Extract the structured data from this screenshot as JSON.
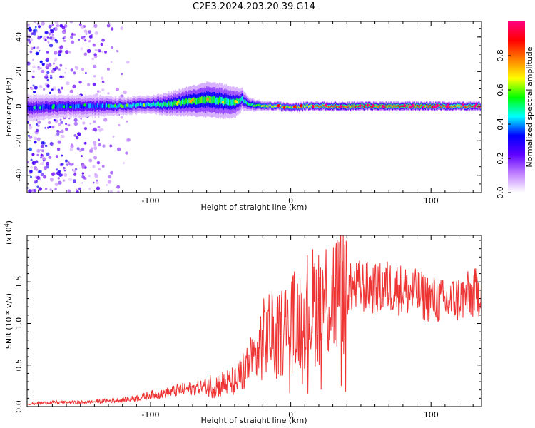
{
  "title": "C2E3.2024.203.20.39.G14",
  "chart_data": [
    {
      "type": "heatmap",
      "xlabel": "Height of straight line (km)",
      "ylabel": "Frequency (Hz)",
      "xlim": [
        -188,
        136
      ],
      "ylim": [
        -50,
        49
      ],
      "x_ticks": [
        -100,
        0,
        100
      ],
      "x_tick_labels": [
        "-100",
        "0",
        "100"
      ],
      "y_ticks": [
        -40,
        -20,
        0,
        20,
        40
      ],
      "y_tick_labels": [
        "-40",
        "-20",
        "0",
        "20",
        "40"
      ],
      "colorbar": {
        "label": "Normalized spectral amplitude",
        "range": [
          0,
          1
        ],
        "ticks": [
          0.0,
          0.2,
          0.4,
          0.6,
          0.8
        ],
        "tick_labels": [
          "0.0",
          "0.2",
          "0.4",
          "0.6",
          "0.8"
        ],
        "colormap": [
          "#ffffff",
          "#c080ff",
          "#6000ff",
          "#0000ff",
          "#00ffff",
          "#00ff00",
          "#ffff00",
          "#ff8000",
          "#ff0000",
          "#ff0080"
        ]
      },
      "ridge": {
        "x": [
          -185,
          -160,
          -140,
          -120,
          -100,
          -90,
          -80,
          -70,
          -60,
          -50,
          -40,
          -35,
          -30,
          -20,
          -10,
          0,
          10,
          20,
          40,
          60,
          80,
          100,
          120,
          135
        ],
        "center_freq": [
          -1,
          0,
          0,
          0,
          1,
          1,
          2,
          3,
          4,
          3,
          2,
          4,
          1,
          0,
          0,
          -1,
          0,
          0,
          0,
          0,
          0,
          0,
          0,
          0
        ],
        "peak_amplitude": [
          0.35,
          0.4,
          0.4,
          0.45,
          0.5,
          0.55,
          0.55,
          0.6,
          0.6,
          0.55,
          0.55,
          0.5,
          0.55,
          0.7,
          0.75,
          0.7,
          0.75,
          0.85,
          0.9,
          0.9,
          0.9,
          0.9,
          0.85,
          0.85
        ],
        "spread_hz": [
          6,
          5,
          5,
          4,
          4,
          5,
          6,
          7,
          8,
          8,
          7,
          5,
          3,
          2,
          2,
          2,
          2,
          2,
          2,
          2,
          2,
          2,
          2,
          2
        ]
      },
      "scatter_noise_region": [
        -188,
        -115
      ]
    },
    {
      "type": "line",
      "xlabel": "Height of straight line (km)",
      "ylabel": "SNR (10 * v/v)",
      "y_scale_label": "(x10^4)",
      "xlim": [
        -188,
        136
      ],
      "ylim": [
        0,
        2.06
      ],
      "x_ticks": [
        -100,
        0,
        100
      ],
      "x_tick_labels": [
        "-100",
        "0",
        "100"
      ],
      "y_ticks": [
        0.0,
        0.5,
        1.0,
        1.5
      ],
      "y_tick_labels": [
        "0.0",
        "0.5",
        "1.0",
        "1.5"
      ],
      "color": "#ee3333",
      "series": [
        {
          "x": [
            -188,
            -180,
            -170,
            -160,
            -150,
            -140,
            -130,
            -120,
            -110,
            -100,
            -90,
            -80,
            -70,
            -60,
            -50,
            -40,
            -35,
            -30,
            -25,
            -20,
            -15,
            -10,
            -5,
            0,
            5,
            10,
            15,
            20,
            25,
            30,
            35,
            40,
            50,
            60,
            70,
            80,
            90,
            100,
            110,
            120,
            130,
            136
          ],
          "values": [
            0.03,
            0.04,
            0.05,
            0.05,
            0.05,
            0.06,
            0.07,
            0.08,
            0.1,
            0.14,
            0.16,
            0.2,
            0.22,
            0.25,
            0.27,
            0.3,
            0.4,
            0.5,
            0.6,
            0.8,
            0.9,
            0.8,
            0.95,
            1.0,
            1.05,
            1.15,
            1.2,
            1.25,
            1.3,
            1.35,
            1.38,
            1.4,
            1.45,
            1.4,
            1.45,
            1.4,
            1.35,
            1.3,
            1.25,
            1.3,
            1.35,
            1.4
          ]
        }
      ]
    }
  ]
}
